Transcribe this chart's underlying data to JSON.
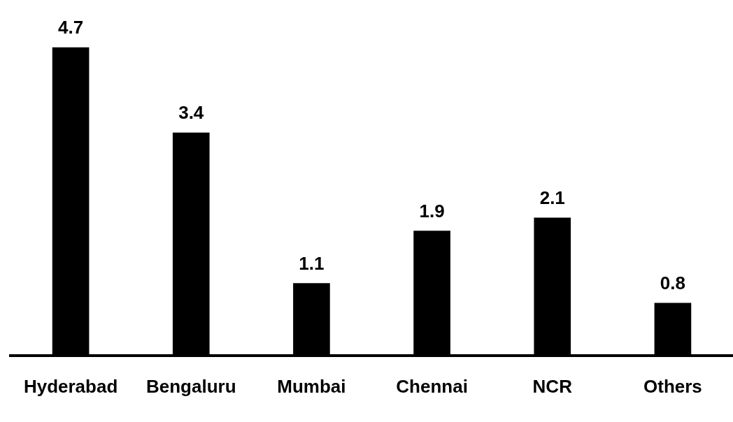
{
  "chart_data": {
    "type": "bar",
    "categories": [
      "Hyderabad",
      "Bengaluru",
      "Mumbai",
      "Chennai",
      "NCR",
      "Others"
    ],
    "values": [
      4.7,
      3.4,
      1.1,
      1.9,
      2.1,
      0.8
    ],
    "color": "#000000",
    "data_labels": true,
    "grid": false,
    "legend": false
  }
}
